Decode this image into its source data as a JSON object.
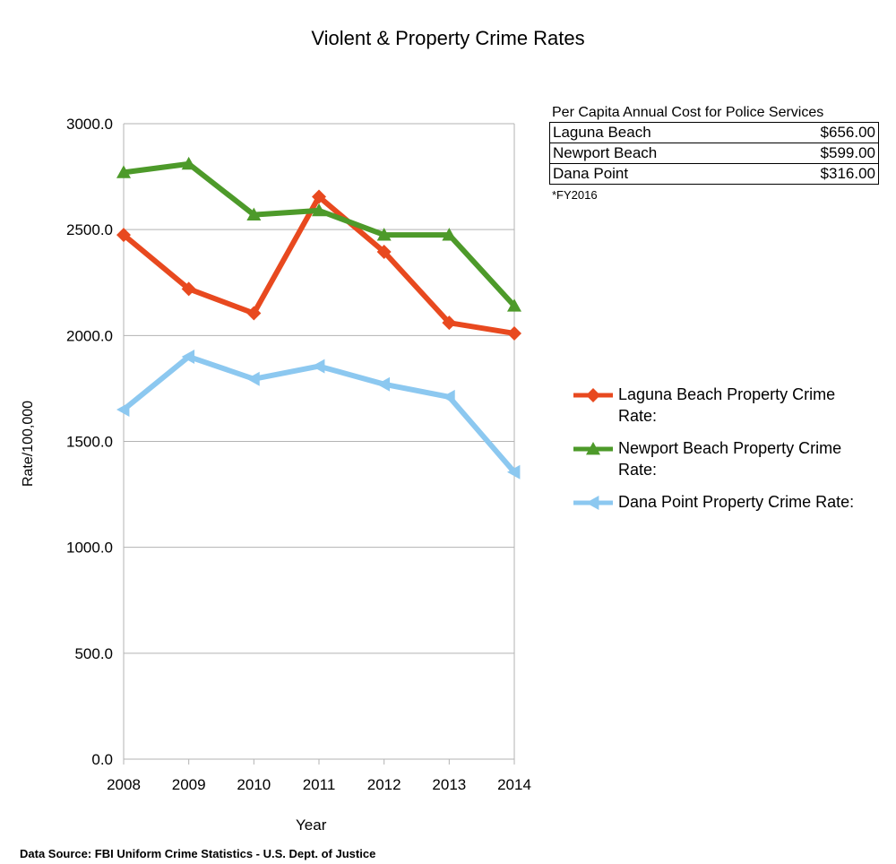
{
  "chart_data": {
    "type": "line",
    "title": "Violent & Property Crime Rates",
    "xlabel": "Year",
    "ylabel": "Rate/100,000",
    "categories": [
      "2008",
      "2009",
      "2010",
      "2011",
      "2012",
      "2013",
      "2014"
    ],
    "ylim": [
      0,
      3000
    ],
    "yticks": [
      "0.0",
      "500.0",
      "1000.0",
      "1500.0",
      "2000.0",
      "2500.0",
      "3000.0"
    ],
    "ytick_values": [
      0,
      500,
      1000,
      1500,
      2000,
      2500,
      3000
    ],
    "grid": true,
    "legend_position": "right",
    "series": [
      {
        "name": "Laguna Beach Property Crime Rate:",
        "color": "#e8491f",
        "marker": "diamond",
        "values": [
          2475,
          2220,
          2105,
          2655,
          2395,
          2060,
          2010
        ]
      },
      {
        "name": "Newport Beach Property Crime Rate:",
        "color": "#4d9a2a",
        "marker": "triangle-up",
        "values": [
          2770,
          2810,
          2570,
          2590,
          2475,
          2475,
          2140
        ]
      },
      {
        "name": "Dana Point Property Crime Rate:",
        "color": "#8cc8f0",
        "marker": "triangle-left",
        "values": [
          1650,
          1900,
          1795,
          1855,
          1770,
          1710,
          1355
        ]
      }
    ],
    "annotations": {
      "cost_table": {
        "heading": "Per Capita Annual Cost for Police Services",
        "rows": [
          {
            "label": "Laguna Beach",
            "value": "$656.00"
          },
          {
            "label": "Newport Beach",
            "value": "$599.00"
          },
          {
            "label": "Dana Point",
            "value": "$316.00"
          }
        ],
        "note": "*FY2016"
      },
      "source": "Data Source:  FBI Uniform Crime Statistics - U.S. Dept. of Justice"
    }
  }
}
